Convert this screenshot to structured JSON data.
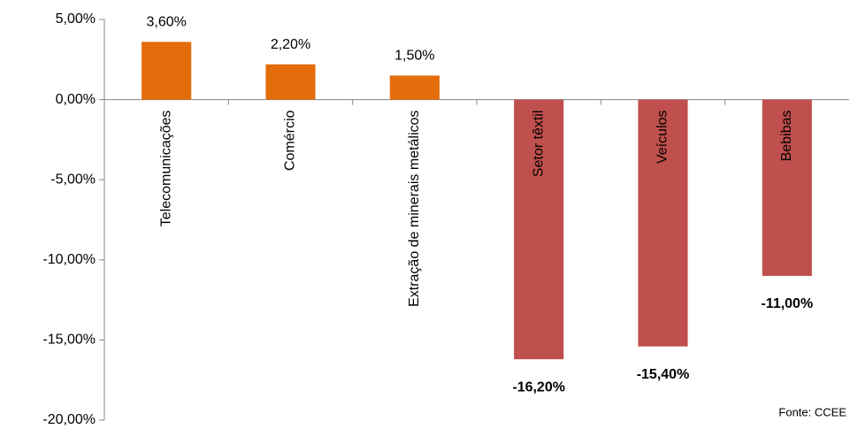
{
  "chart_data": {
    "type": "bar",
    "categories": [
      "Telecomunicações",
      "Comércio",
      "Extração de minerais metálicos",
      "Setor têxtil",
      "Veículos",
      "Bebibas"
    ],
    "values": [
      3.6,
      2.2,
      1.5,
      -16.2,
      -15.4,
      -11.0
    ],
    "value_labels": [
      "3,60%",
      "2,20%",
      "1,50%",
      "-16,20%",
      "-15,40%",
      "-11,00%"
    ],
    "colors": [
      "#e46c0a",
      "#e46c0a",
      "#e46c0a",
      "#c0504d",
      "#c0504d",
      "#c0504d"
    ],
    "ylim": [
      -20,
      5
    ],
    "yticks": [
      {
        "value": 5,
        "label": "5,00%"
      },
      {
        "value": 0,
        "label": "0,00%"
      },
      {
        "value": -5,
        "label": "-5,00%"
      },
      {
        "value": -10,
        "label": "-10,00%"
      },
      {
        "value": -15,
        "label": "-15,00%"
      },
      {
        "value": -20,
        "label": "-20,00%"
      }
    ],
    "source": "Fonte: CCEE"
  }
}
